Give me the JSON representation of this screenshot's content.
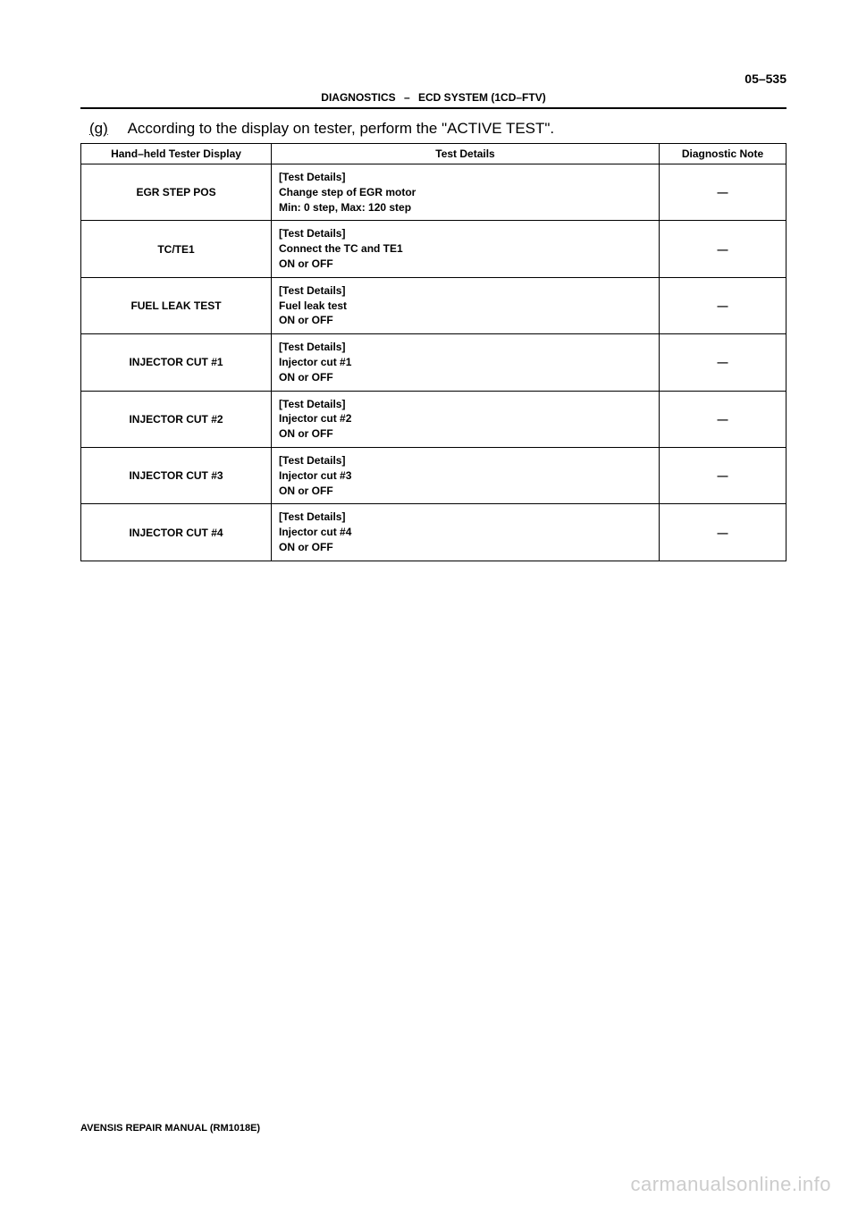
{
  "page_number": "05–535",
  "header": {
    "left": "DIAGNOSTICS",
    "dash": "–",
    "right": "ECD SYSTEM (1CD–FTV)"
  },
  "instruction": {
    "prefix": "(g)",
    "text": "According to the display on tester, perform the \"ACTIVE TEST\"."
  },
  "table": {
    "columns": [
      "Hand–held Tester Display",
      "Test Details",
      "Diagnostic Note"
    ],
    "rows": [
      {
        "display": "EGR STEP POS",
        "details": "[Test Details]\nChange step of EGR motor\nMin: 0 step, Max: 120 step",
        "note": "—"
      },
      {
        "display": "TC/TE1",
        "details": "[Test Details]\nConnect the TC and TE1\nON or OFF",
        "note": "—"
      },
      {
        "display": "FUEL LEAK TEST",
        "details": "[Test Details]\nFuel leak test\nON or OFF",
        "note": "—"
      },
      {
        "display": "INJECTOR CUT #1",
        "details": "[Test Details]\nInjector cut #1\nON or OFF",
        "note": "—"
      },
      {
        "display": "INJECTOR CUT #2",
        "details": "[Test Details]\nInjector cut #2\nON or OFF",
        "note": "—"
      },
      {
        "display": "INJECTOR CUT #3",
        "details": "[Test Details]\nInjector cut #3\nON or OFF",
        "note": "—"
      },
      {
        "display": "INJECTOR CUT #4",
        "details": "[Test Details]\nInjector cut #4\nON or OFF",
        "note": "—"
      }
    ]
  },
  "footer": "AVENSIS REPAIR MANUAL   (RM1018E)",
  "watermark": "carmanualsonline.info"
}
